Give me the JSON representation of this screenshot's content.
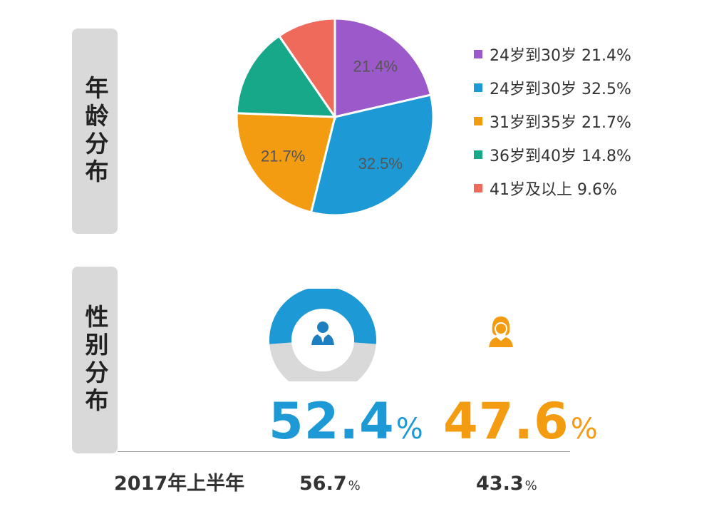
{
  "sections": {
    "age_title": "年龄分布",
    "gender_title": "性别分布"
  },
  "chart_data": [
    {
      "type": "pie",
      "title": "年龄分布",
      "slices": [
        {
          "label": "24岁到30岁",
          "value": 21.4,
          "display": "21.4%",
          "color": "#9b59c9"
        },
        {
          "label": "24岁到30岁",
          "value": 32.5,
          "display": "32.5%",
          "color": "#1d9ad6"
        },
        {
          "label": "31岁到35岁",
          "value": 21.7,
          "display": "21.7%",
          "color": "#f39c12"
        },
        {
          "label": "36岁到40岁",
          "value": 14.8,
          "display": "14.8%",
          "color": "#17a88a"
        },
        {
          "label": "41岁及以上",
          "value": 9.6,
          "display": "9.6%",
          "color": "#ee6a5a"
        }
      ],
      "legend_position": "right"
    },
    {
      "type": "pie",
      "title": "性别分布",
      "slices": [
        {
          "label": "male",
          "value": 52.4,
          "display": "52.4",
          "unit": "%",
          "color": "#1d9ad6"
        },
        {
          "label": "female",
          "value": 47.6,
          "display": "47.6",
          "unit": "%",
          "color": "#f39c12"
        }
      ],
      "comparison": {
        "label": "2017年上半年",
        "male": "56.7",
        "female": "43.3",
        "unit": "%"
      }
    }
  ],
  "icons": {
    "male": "male-user-icon",
    "female": "female-user-icon"
  }
}
